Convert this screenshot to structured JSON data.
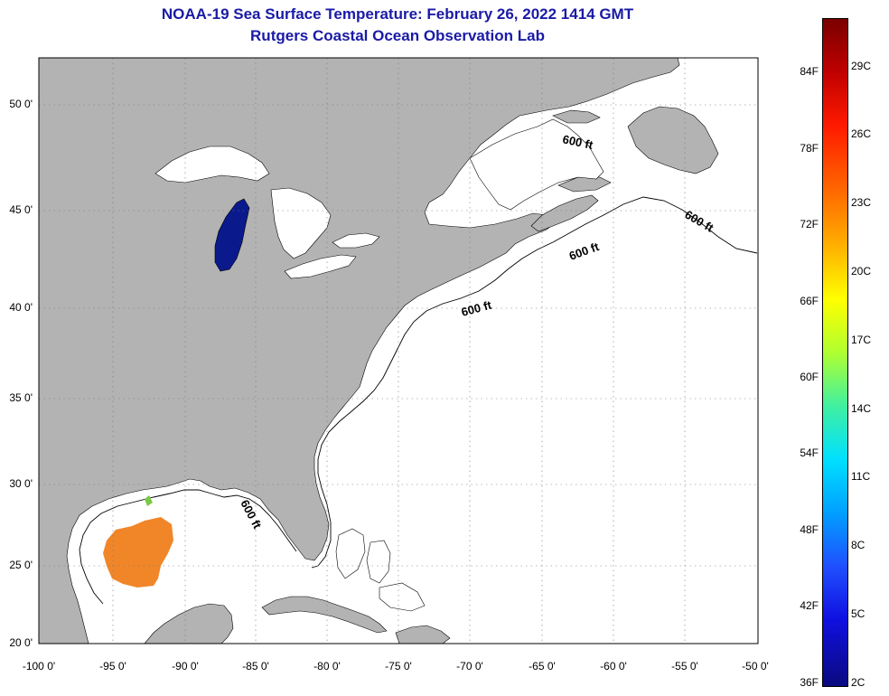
{
  "title_line1": "NOAA-19 Sea Surface Temperature:  February 26, 2022 1414 GMT",
  "title_line2": "Rutgers Coastal Ocean Observation Lab",
  "lat_labels": [
    "50 0'",
    "45 0'",
    "40 0'",
    "35 0'",
    "30 0'",
    "25 0'",
    "20 0'"
  ],
  "lon_labels": [
    "-100 0'",
    "-95 0'",
    "-90 0'",
    "-85 0'",
    "-80 0'",
    "-75 0'",
    "-70 0'",
    "-65 0'",
    "-60 0'",
    "-55 0'",
    "-50 0'"
  ],
  "contour_label": "600 ft",
  "colorbar": {
    "fahrenheit": [
      "84F",
      "78F",
      "72F",
      "66F",
      "60F",
      "54F",
      "48F",
      "42F",
      "36F"
    ],
    "celsius": [
      "29C",
      "26C",
      "23C",
      "20C",
      "17C",
      "14C",
      "11C",
      "8C",
      "5C",
      "2C"
    ]
  },
  "colors": {
    "land": "#b3b3b3",
    "water": "#ffffff",
    "lake_michigan": "#0a1a8c",
    "gulf_sst": "#f07c16",
    "title": "#1a1aa6"
  }
}
